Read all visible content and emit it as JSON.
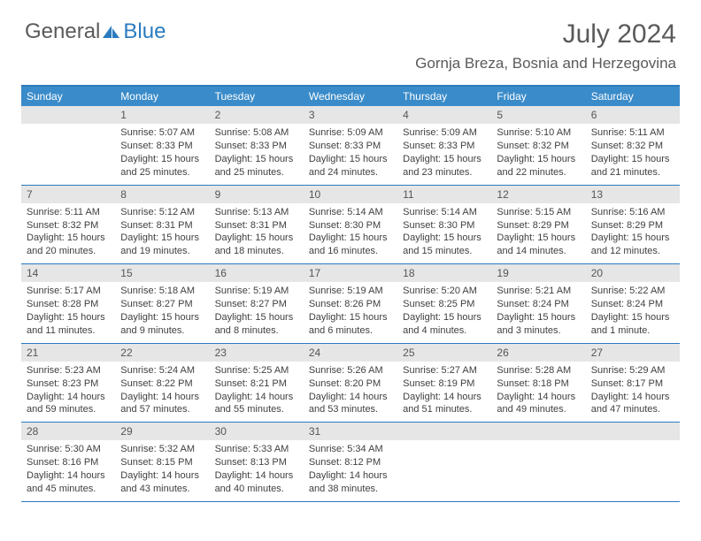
{
  "logo": {
    "general": "General",
    "blue": "Blue"
  },
  "title": "July 2024",
  "location": "Gornja Breza, Bosnia and Herzegovina",
  "weekdays": [
    "Sunday",
    "Monday",
    "Tuesday",
    "Wednesday",
    "Thursday",
    "Friday",
    "Saturday"
  ],
  "header_bg": "#3a8bc9",
  "border_color": "#2b7bbf",
  "daynum_bg": "#e6e6e6",
  "weeks": [
    [
      null,
      {
        "n": "1",
        "sr": "5:07 AM",
        "ss": "8:33 PM",
        "dl": "15 hours and 25 minutes."
      },
      {
        "n": "2",
        "sr": "5:08 AM",
        "ss": "8:33 PM",
        "dl": "15 hours and 25 minutes."
      },
      {
        "n": "3",
        "sr": "5:09 AM",
        "ss": "8:33 PM",
        "dl": "15 hours and 24 minutes."
      },
      {
        "n": "4",
        "sr": "5:09 AM",
        "ss": "8:33 PM",
        "dl": "15 hours and 23 minutes."
      },
      {
        "n": "5",
        "sr": "5:10 AM",
        "ss": "8:32 PM",
        "dl": "15 hours and 22 minutes."
      },
      {
        "n": "6",
        "sr": "5:11 AM",
        "ss": "8:32 PM",
        "dl": "15 hours and 21 minutes."
      }
    ],
    [
      {
        "n": "7",
        "sr": "5:11 AM",
        "ss": "8:32 PM",
        "dl": "15 hours and 20 minutes."
      },
      {
        "n": "8",
        "sr": "5:12 AM",
        "ss": "8:31 PM",
        "dl": "15 hours and 19 minutes."
      },
      {
        "n": "9",
        "sr": "5:13 AM",
        "ss": "8:31 PM",
        "dl": "15 hours and 18 minutes."
      },
      {
        "n": "10",
        "sr": "5:14 AM",
        "ss": "8:30 PM",
        "dl": "15 hours and 16 minutes."
      },
      {
        "n": "11",
        "sr": "5:14 AM",
        "ss": "8:30 PM",
        "dl": "15 hours and 15 minutes."
      },
      {
        "n": "12",
        "sr": "5:15 AM",
        "ss": "8:29 PM",
        "dl": "15 hours and 14 minutes."
      },
      {
        "n": "13",
        "sr": "5:16 AM",
        "ss": "8:29 PM",
        "dl": "15 hours and 12 minutes."
      }
    ],
    [
      {
        "n": "14",
        "sr": "5:17 AM",
        "ss": "8:28 PM",
        "dl": "15 hours and 11 minutes."
      },
      {
        "n": "15",
        "sr": "5:18 AM",
        "ss": "8:27 PM",
        "dl": "15 hours and 9 minutes."
      },
      {
        "n": "16",
        "sr": "5:19 AM",
        "ss": "8:27 PM",
        "dl": "15 hours and 8 minutes."
      },
      {
        "n": "17",
        "sr": "5:19 AM",
        "ss": "8:26 PM",
        "dl": "15 hours and 6 minutes."
      },
      {
        "n": "18",
        "sr": "5:20 AM",
        "ss": "8:25 PM",
        "dl": "15 hours and 4 minutes."
      },
      {
        "n": "19",
        "sr": "5:21 AM",
        "ss": "8:24 PM",
        "dl": "15 hours and 3 minutes."
      },
      {
        "n": "20",
        "sr": "5:22 AM",
        "ss": "8:24 PM",
        "dl": "15 hours and 1 minute."
      }
    ],
    [
      {
        "n": "21",
        "sr": "5:23 AM",
        "ss": "8:23 PM",
        "dl": "14 hours and 59 minutes."
      },
      {
        "n": "22",
        "sr": "5:24 AM",
        "ss": "8:22 PM",
        "dl": "14 hours and 57 minutes."
      },
      {
        "n": "23",
        "sr": "5:25 AM",
        "ss": "8:21 PM",
        "dl": "14 hours and 55 minutes."
      },
      {
        "n": "24",
        "sr": "5:26 AM",
        "ss": "8:20 PM",
        "dl": "14 hours and 53 minutes."
      },
      {
        "n": "25",
        "sr": "5:27 AM",
        "ss": "8:19 PM",
        "dl": "14 hours and 51 minutes."
      },
      {
        "n": "26",
        "sr": "5:28 AM",
        "ss": "8:18 PM",
        "dl": "14 hours and 49 minutes."
      },
      {
        "n": "27",
        "sr": "5:29 AM",
        "ss": "8:17 PM",
        "dl": "14 hours and 47 minutes."
      }
    ],
    [
      {
        "n": "28",
        "sr": "5:30 AM",
        "ss": "8:16 PM",
        "dl": "14 hours and 45 minutes."
      },
      {
        "n": "29",
        "sr": "5:32 AM",
        "ss": "8:15 PM",
        "dl": "14 hours and 43 minutes."
      },
      {
        "n": "30",
        "sr": "5:33 AM",
        "ss": "8:13 PM",
        "dl": "14 hours and 40 minutes."
      },
      {
        "n": "31",
        "sr": "5:34 AM",
        "ss": "8:12 PM",
        "dl": "14 hours and 38 minutes."
      },
      null,
      null,
      null
    ]
  ],
  "labels": {
    "sunrise": "Sunrise:",
    "sunset": "Sunset:",
    "daylight": "Daylight:"
  }
}
